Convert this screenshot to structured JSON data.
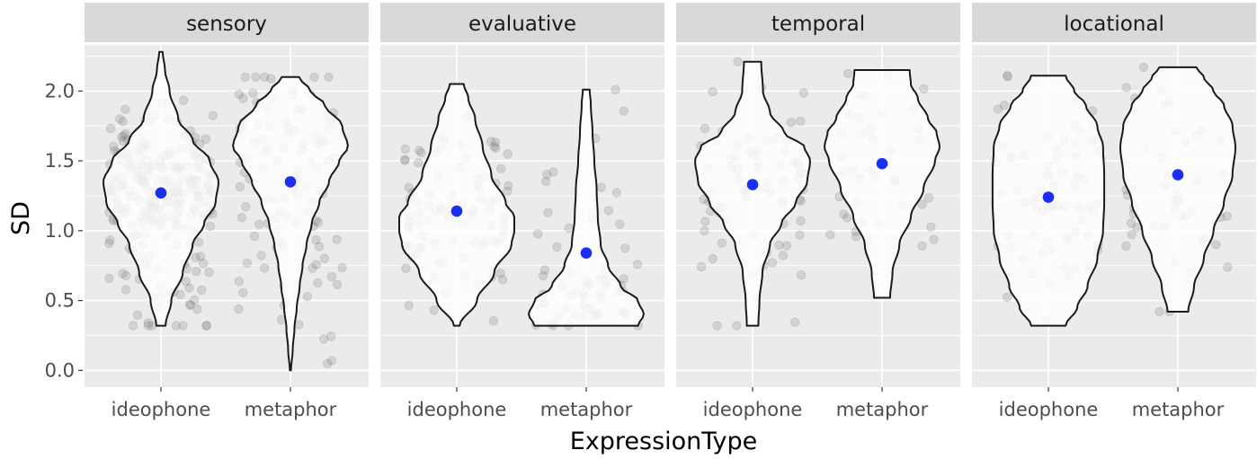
{
  "chart_data": {
    "type": "violin",
    "xlabel": "ExpressionType",
    "ylabel": "SD",
    "ylim": [
      -0.12,
      2.33
    ],
    "yticks": [
      "0.0",
      "0.5",
      "1.0",
      "1.5",
      "2.0"
    ],
    "grid": true,
    "categories": [
      "ideophone",
      "metaphor"
    ],
    "colors": {
      "panel_bg": "#ebebeb",
      "strip_bg": "#d9d9d9",
      "grid": "#ffffff",
      "mean_point": "#1a2ff2",
      "jitter": "#777777",
      "violin_fill": "#ffffff",
      "violin_line": "#1a1a1a"
    },
    "panels": [
      {
        "name": "sensory",
        "groups": [
          {
            "category": "ideophone",
            "mean": 1.27,
            "min": 0.32,
            "max": 2.28,
            "n_points": 260,
            "clusters": [
              [
                1.35,
                0.22,
                3
              ],
              [
                0.85,
                0.35,
                1
              ]
            ],
            "profile": [
              [
                0.32,
                0.08
              ],
              [
                0.5,
                0.18
              ],
              [
                0.7,
                0.38
              ],
              [
                0.9,
                0.55
              ],
              [
                1.05,
                0.75
              ],
              [
                1.2,
                0.95
              ],
              [
                1.35,
                1.0
              ],
              [
                1.5,
                0.85
              ],
              [
                1.65,
                0.55
              ],
              [
                1.8,
                0.3
              ],
              [
                2.0,
                0.15
              ],
              [
                2.15,
                0.07
              ],
              [
                2.28,
                0.03
              ]
            ]
          },
          {
            "category": "metaphor",
            "mean": 1.35,
            "min": 0.0,
            "max": 2.1,
            "n_points": 110,
            "clusters": [
              [
                1.6,
                0.3,
                2
              ],
              [
                0.8,
                0.35,
                1
              ]
            ],
            "profile": [
              [
                0.0,
                0.01
              ],
              [
                0.15,
                0.04
              ],
              [
                0.3,
                0.07
              ],
              [
                0.45,
                0.11
              ],
              [
                0.6,
                0.16
              ],
              [
                0.75,
                0.21
              ],
              [
                0.9,
                0.28
              ],
              [
                1.05,
                0.37
              ],
              [
                1.2,
                0.5
              ],
              [
                1.35,
                0.67
              ],
              [
                1.5,
                0.85
              ],
              [
                1.6,
                1.0
              ],
              [
                1.75,
                0.9
              ],
              [
                1.9,
                0.6
              ],
              [
                2.0,
                0.35
              ],
              [
                2.1,
                0.15
              ]
            ]
          }
        ]
      },
      {
        "name": "evaluative",
        "groups": [
          {
            "category": "ideophone",
            "mean": 1.14,
            "min": 0.32,
            "max": 2.05,
            "n_points": 90,
            "clusters": [
              [
                1.1,
                0.35,
                1
              ]
            ],
            "profile": [
              [
                0.32,
                0.05
              ],
              [
                0.5,
                0.35
              ],
              [
                0.7,
                0.65
              ],
              [
                0.9,
                0.95
              ],
              [
                1.0,
                1.0
              ],
              [
                1.1,
                1.0
              ],
              [
                1.2,
                0.85
              ],
              [
                1.4,
                0.6
              ],
              [
                1.6,
                0.45
              ],
              [
                1.8,
                0.32
              ],
              [
                1.95,
                0.2
              ],
              [
                2.05,
                0.12
              ]
            ]
          },
          {
            "category": "metaphor",
            "mean": 0.84,
            "min": 0.32,
            "max": 2.01,
            "n_points": 60,
            "clusters": [
              [
                0.5,
                0.15,
                2
              ],
              [
                1.0,
                0.45,
                1
              ]
            ],
            "profile": [
              [
                0.32,
                0.9
              ],
              [
                0.4,
                1.0
              ],
              [
                0.5,
                0.9
              ],
              [
                0.6,
                0.6
              ],
              [
                0.75,
                0.38
              ],
              [
                0.9,
                0.25
              ],
              [
                1.1,
                0.2
              ],
              [
                1.3,
                0.18
              ],
              [
                1.5,
                0.14
              ],
              [
                1.7,
                0.11
              ],
              [
                1.9,
                0.08
              ],
              [
                2.01,
                0.06
              ]
            ]
          }
        ]
      },
      {
        "name": "temporal",
        "groups": [
          {
            "category": "ideophone",
            "mean": 1.33,
            "min": 0.32,
            "max": 2.21,
            "n_points": 75,
            "clusters": [
              [
                1.4,
                0.3,
                2
              ],
              [
                0.9,
                0.4,
                1
              ]
            ],
            "profile": [
              [
                0.32,
                0.1
              ],
              [
                0.5,
                0.12
              ],
              [
                0.7,
                0.17
              ],
              [
                0.9,
                0.3
              ],
              [
                1.05,
                0.5
              ],
              [
                1.2,
                0.75
              ],
              [
                1.35,
                0.95
              ],
              [
                1.5,
                1.0
              ],
              [
                1.6,
                0.9
              ],
              [
                1.7,
                0.55
              ],
              [
                1.85,
                0.3
              ],
              [
                2.0,
                0.18
              ],
              [
                2.21,
                0.15
              ]
            ]
          },
          {
            "category": "metaphor",
            "mean": 1.48,
            "min": 0.52,
            "max": 2.15,
            "n_points": 40,
            "clusters": [
              [
                1.5,
                0.4,
                1
              ]
            ],
            "profile": [
              [
                0.52,
                0.14
              ],
              [
                0.7,
                0.18
              ],
              [
                0.9,
                0.3
              ],
              [
                1.1,
                0.5
              ],
              [
                1.3,
                0.72
              ],
              [
                1.5,
                0.92
              ],
              [
                1.6,
                1.0
              ],
              [
                1.7,
                0.95
              ],
              [
                1.8,
                0.8
              ],
              [
                1.95,
                0.62
              ],
              [
                2.05,
                0.5
              ],
              [
                2.15,
                0.48
              ]
            ]
          }
        ]
      },
      {
        "name": "locational",
        "groups": [
          {
            "category": "ideophone",
            "mean": 1.24,
            "min": 0.32,
            "max": 2.11,
            "n_points": 70,
            "clusters": [
              [
                1.3,
                0.45,
                1
              ]
            ],
            "profile": [
              [
                0.32,
                0.3
              ],
              [
                0.45,
                0.5
              ],
              [
                0.6,
                0.68
              ],
              [
                0.8,
                0.85
              ],
              [
                1.0,
                0.95
              ],
              [
                1.2,
                0.97
              ],
              [
                1.4,
                0.97
              ],
              [
                1.6,
                0.95
              ],
              [
                1.75,
                0.85
              ],
              [
                1.9,
                0.65
              ],
              [
                2.0,
                0.45
              ],
              [
                2.11,
                0.3
              ]
            ]
          },
          {
            "category": "metaphor",
            "mean": 1.4,
            "min": 0.42,
            "max": 2.17,
            "n_points": 45,
            "clusters": [
              [
                1.4,
                0.45,
                1
              ]
            ],
            "profile": [
              [
                0.42,
                0.18
              ],
              [
                0.6,
                0.28
              ],
              [
                0.8,
                0.45
              ],
              [
                1.0,
                0.62
              ],
              [
                1.2,
                0.8
              ],
              [
                1.4,
                0.95
              ],
              [
                1.6,
                1.0
              ],
              [
                1.75,
                0.95
              ],
              [
                1.9,
                0.8
              ],
              [
                2.0,
                0.62
              ],
              [
                2.1,
                0.45
              ],
              [
                2.17,
                0.32
              ]
            ]
          }
        ]
      }
    ]
  }
}
